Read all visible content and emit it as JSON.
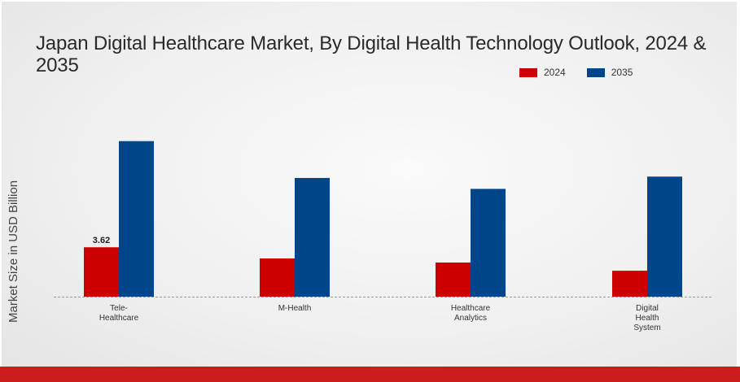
{
  "chart_data": {
    "type": "bar",
    "title": "Japan Digital Healthcare Market, By Digital Health Technology Outlook, 2024 & 2035",
    "xlabel": "",
    "ylabel": "Market Size in USD Billion",
    "categories": [
      "Tele-\nHealthcare",
      "M-Health",
      "Healthcare\nAnalytics",
      "Digital\nHealth\nSystem"
    ],
    "series": [
      {
        "name": "2024",
        "color": "#cc0000",
        "values": [
          3.62,
          2.8,
          2.5,
          1.9
        ]
      },
      {
        "name": "2035",
        "color": "#00458a",
        "values": [
          11.4,
          8.7,
          7.9,
          8.8
        ]
      }
    ],
    "data_labels": [
      {
        "series": 0,
        "index": 0,
        "text": "3.62"
      }
    ],
    "ylim": [
      0,
      14
    ],
    "grid": false,
    "legend_position": "top-right"
  }
}
